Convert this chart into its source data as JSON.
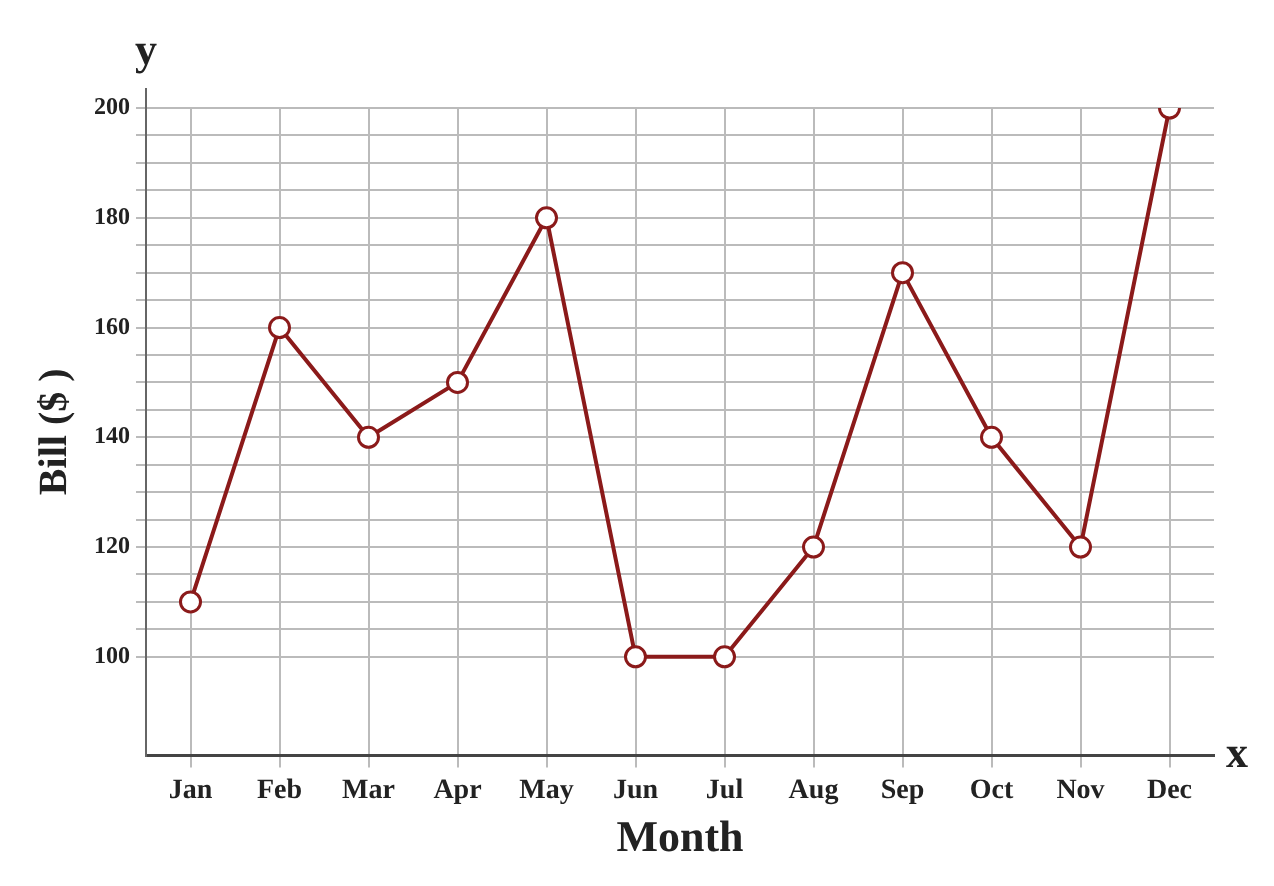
{
  "chart_data": {
    "type": "line",
    "xlabel": "Month",
    "ylabel": "Bill ($ )",
    "annotations": [
      "y",
      "x"
    ],
    "categories": [
      "Jan",
      "Feb",
      "Mar",
      "Apr",
      "May",
      "Jun",
      "Jul",
      "Aug",
      "Sep",
      "Oct",
      "Nov",
      "Dec"
    ],
    "series": [
      {
        "color": "#8b1a1a",
        "values": [
          110,
          160,
          140,
          150,
          180,
          100,
          100,
          120,
          170,
          140,
          120,
          200
        ]
      }
    ],
    "ylim": [
      82,
      200
    ],
    "yticks": [
      100,
      {
        "value": 105,
        "label": null
      },
      {
        "value": 110,
        "label": null
      },
      {
        "value": 115,
        "label": null
      },
      120,
      {
        "value": 125,
        "label": null
      },
      {
        "value": 130,
        "label": null
      },
      {
        "value": 135,
        "label": null
      },
      140,
      {
        "value": 145,
        "label": null
      },
      {
        "value": 150,
        "label": null
      },
      {
        "value": 155,
        "label": null
      },
      160,
      {
        "value": 165,
        "label": null
      },
      {
        "value": 170,
        "label": null
      },
      {
        "value": 175,
        "label": null
      },
      180,
      {
        "value": 185,
        "label": null
      },
      {
        "value": 190,
        "label": null
      },
      {
        "value": 195,
        "label": null
      },
      200
    ],
    "grid": true,
    "legend": false,
    "marker": "circle",
    "line_style": "solid"
  }
}
